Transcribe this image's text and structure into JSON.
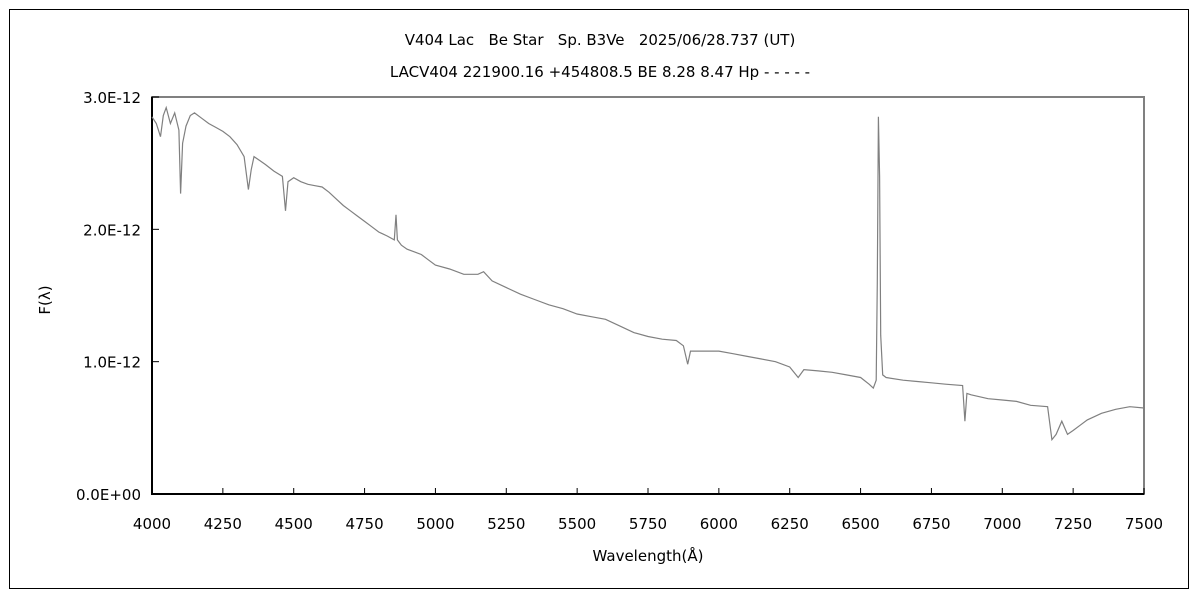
{
  "chart_data": {
    "type": "line",
    "title": "V404 Lac   Be Star   Sp. B3Ve   2025/06/28.737 (UT)",
    "subtitle": "LACV404 221900.16 +454808.5 BE 8.28 8.47 Hp - - - - -",
    "xlabel": "Wavelength(Å)",
    "ylabel": "F(λ)",
    "xlim": [
      4000,
      7500
    ],
    "ylim": [
      0,
      3e-12
    ],
    "x_ticks": [
      4000,
      4250,
      4500,
      4750,
      5000,
      5250,
      5500,
      5750,
      6000,
      6250,
      6500,
      6750,
      7000,
      7250,
      7500
    ],
    "x_tick_labels": [
      "4000",
      "4250",
      "4500",
      "4750",
      "5000",
      "5250",
      "5500",
      "5750",
      "6000",
      "6250",
      "6500",
      "6750",
      "7000",
      "7250",
      "7500"
    ],
    "y_ticks": [
      0,
      1e-12,
      2e-12,
      3e-12
    ],
    "y_tick_labels": [
      "0.0E+00",
      "1.0E-12",
      "2.0E-12",
      "3.0E-12"
    ],
    "grid": false,
    "line_color": "#808080",
    "x": [
      4000,
      4015,
      4030,
      4040,
      4050,
      4065,
      4080,
      4095,
      4101,
      4108,
      4120,
      4135,
      4150,
      4175,
      4200,
      4225,
      4250,
      4275,
      4300,
      4325,
      4340,
      4350,
      4360,
      4380,
      4400,
      4430,
      4460,
      4471,
      4480,
      4500,
      4525,
      4550,
      4575,
      4600,
      4625,
      4650,
      4675,
      4700,
      4725,
      4750,
      4775,
      4800,
      4830,
      4855,
      4861,
      4866,
      4880,
      4900,
      4925,
      4950,
      4975,
      5000,
      5050,
      5100,
      5150,
      5170,
      5200,
      5250,
      5300,
      5350,
      5400,
      5450,
      5500,
      5550,
      5600,
      5650,
      5700,
      5750,
      5800,
      5850,
      5875,
      5890,
      5900,
      5950,
      6000,
      6050,
      6100,
      6150,
      6200,
      6250,
      6280,
      6300,
      6350,
      6400,
      6450,
      6500,
      6530,
      6545,
      6555,
      6559,
      6563,
      6567,
      6571,
      6578,
      6590,
      6650,
      6700,
      6750,
      6800,
      6860,
      6868,
      6875,
      6890,
      6950,
      7000,
      7050,
      7100,
      7160,
      7175,
      7190,
      7210,
      7230,
      7250,
      7275,
      7300,
      7350,
      7400,
      7450,
      7500
    ],
    "y": [
      2.85,
      2.8,
      2.7,
      2.86,
      2.92,
      2.8,
      2.88,
      2.75,
      2.27,
      2.65,
      2.78,
      2.86,
      2.88,
      2.84,
      2.8,
      2.77,
      2.74,
      2.7,
      2.64,
      2.55,
      2.3,
      2.45,
      2.55,
      2.52,
      2.49,
      2.44,
      2.4,
      2.14,
      2.36,
      2.39,
      2.36,
      2.34,
      2.33,
      2.32,
      2.28,
      2.23,
      2.18,
      2.14,
      2.1,
      2.06,
      2.02,
      1.98,
      1.95,
      1.92,
      2.11,
      1.92,
      1.88,
      1.85,
      1.83,
      1.81,
      1.77,
      1.73,
      1.7,
      1.66,
      1.66,
      1.68,
      1.61,
      1.56,
      1.51,
      1.47,
      1.43,
      1.4,
      1.36,
      1.34,
      1.32,
      1.27,
      1.22,
      1.19,
      1.17,
      1.16,
      1.12,
      0.98,
      1.08,
      1.08,
      1.08,
      1.06,
      1.04,
      1.02,
      1.0,
      0.96,
      0.88,
      0.94,
      0.93,
      0.92,
      0.9,
      0.88,
      0.83,
      0.8,
      0.86,
      1.6,
      2.85,
      2.4,
      1.2,
      0.9,
      0.88,
      0.86,
      0.85,
      0.84,
      0.83,
      0.82,
      0.55,
      0.76,
      0.75,
      0.72,
      0.71,
      0.7,
      0.67,
      0.66,
      0.41,
      0.45,
      0.55,
      0.45,
      0.48,
      0.52,
      0.56,
      0.61,
      0.64,
      0.66,
      0.65
    ]
  }
}
